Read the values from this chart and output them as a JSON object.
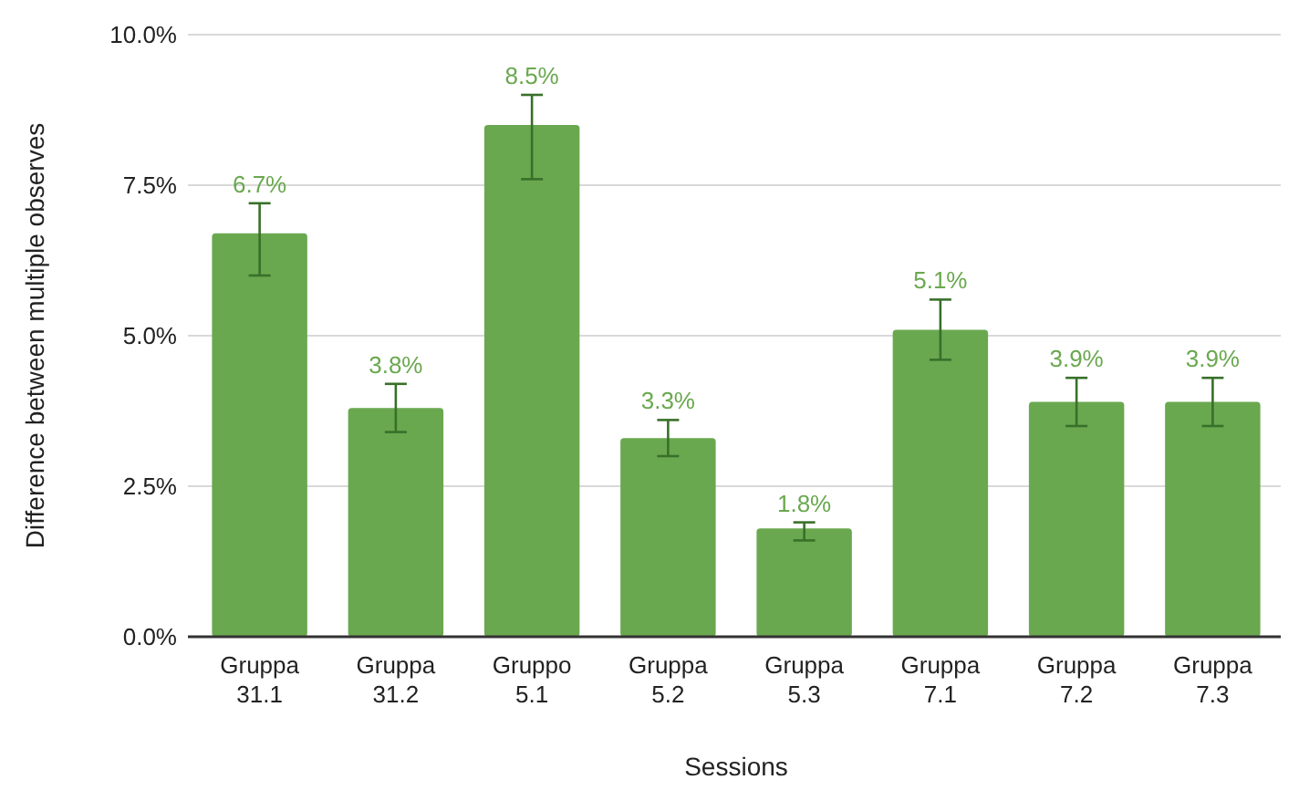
{
  "chart_data": {
    "type": "bar",
    "xlabel": "Sessions",
    "ylabel": "Difference between multiple observes",
    "categories": [
      "Gruppa 31.1",
      "Gruppa 31.2",
      "Gruppo 5.1",
      "Gruppa 5.2",
      "Gruppa 5.3",
      "Gruppa 7.1",
      "Gruppa 7.2",
      "Gruppa 7.3"
    ],
    "values": [
      6.7,
      3.8,
      8.5,
      3.3,
      1.8,
      5.1,
      3.9,
      3.9
    ],
    "errors": [
      [
        6.0,
        7.2
      ],
      [
        3.4,
        4.2
      ],
      [
        7.6,
        9.0
      ],
      [
        3.0,
        3.6
      ],
      [
        1.6,
        1.9
      ],
      [
        4.6,
        5.6
      ],
      [
        3.5,
        4.3
      ],
      [
        3.5,
        4.3
      ]
    ],
    "value_labels": [
      "6.7%",
      "3.8%",
      "8.5%",
      "3.3%",
      "1.8%",
      "5.1%",
      "3.9%",
      "3.9%"
    ],
    "color": "#6aa84f",
    "ylim": [
      0,
      10
    ],
    "yticks": [
      {
        "value": 0,
        "label": "0.0%"
      },
      {
        "value": 2.5,
        "label": "2.5%"
      },
      {
        "value": 5,
        "label": "5.0%"
      },
      {
        "value": 7.5,
        "label": "7.5%"
      },
      {
        "value": 10,
        "label": "10.0%"
      }
    ],
    "grid": "y"
  }
}
